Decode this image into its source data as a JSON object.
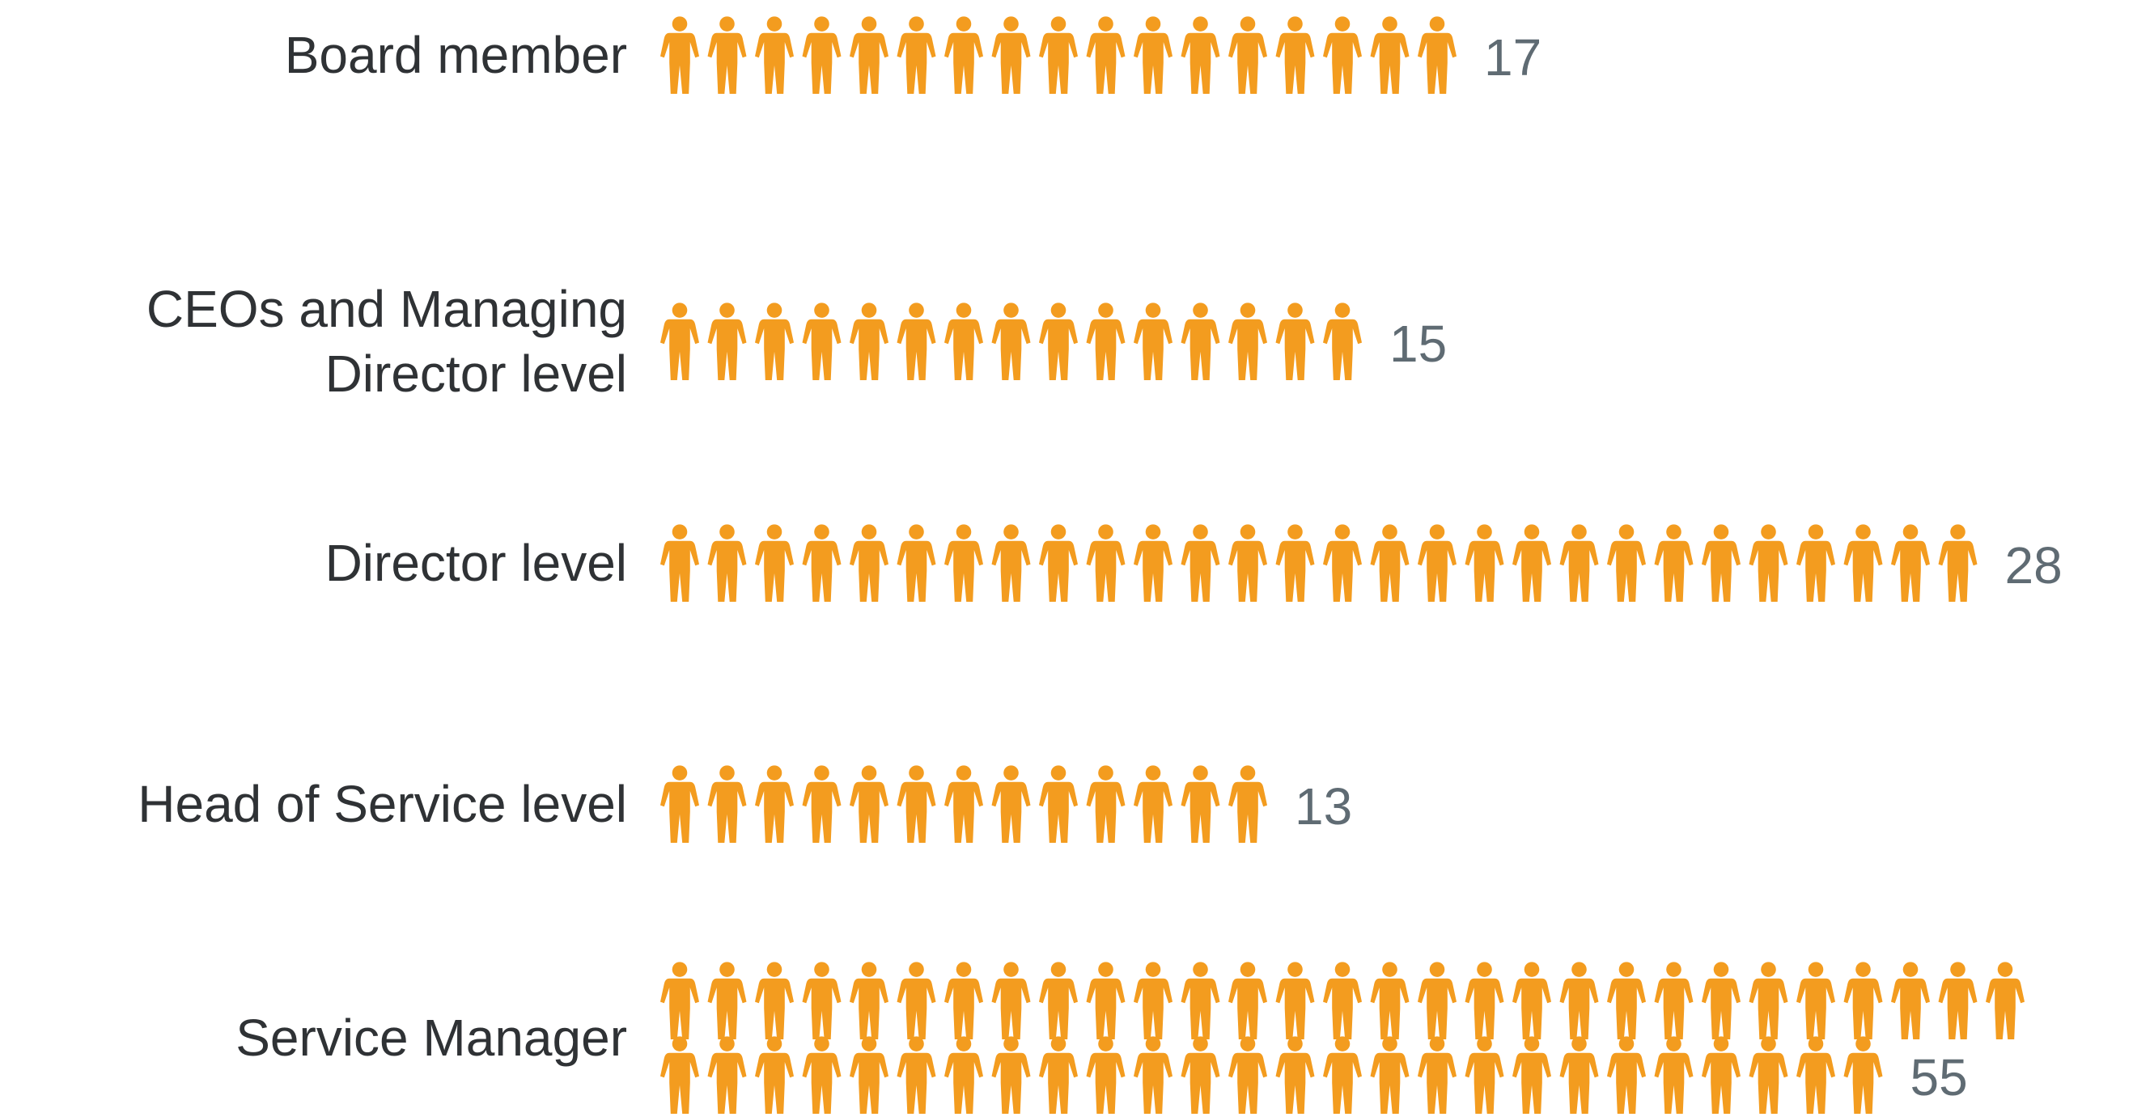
{
  "chart_data": {
    "type": "pictogram",
    "categories": [
      "Board member",
      "CEOs and Managing Director level",
      "Director level",
      "Head of Service level",
      "Service Manager"
    ],
    "values": [
      17,
      15,
      28,
      13,
      55
    ],
    "color": "#f39c1f"
  }
}
